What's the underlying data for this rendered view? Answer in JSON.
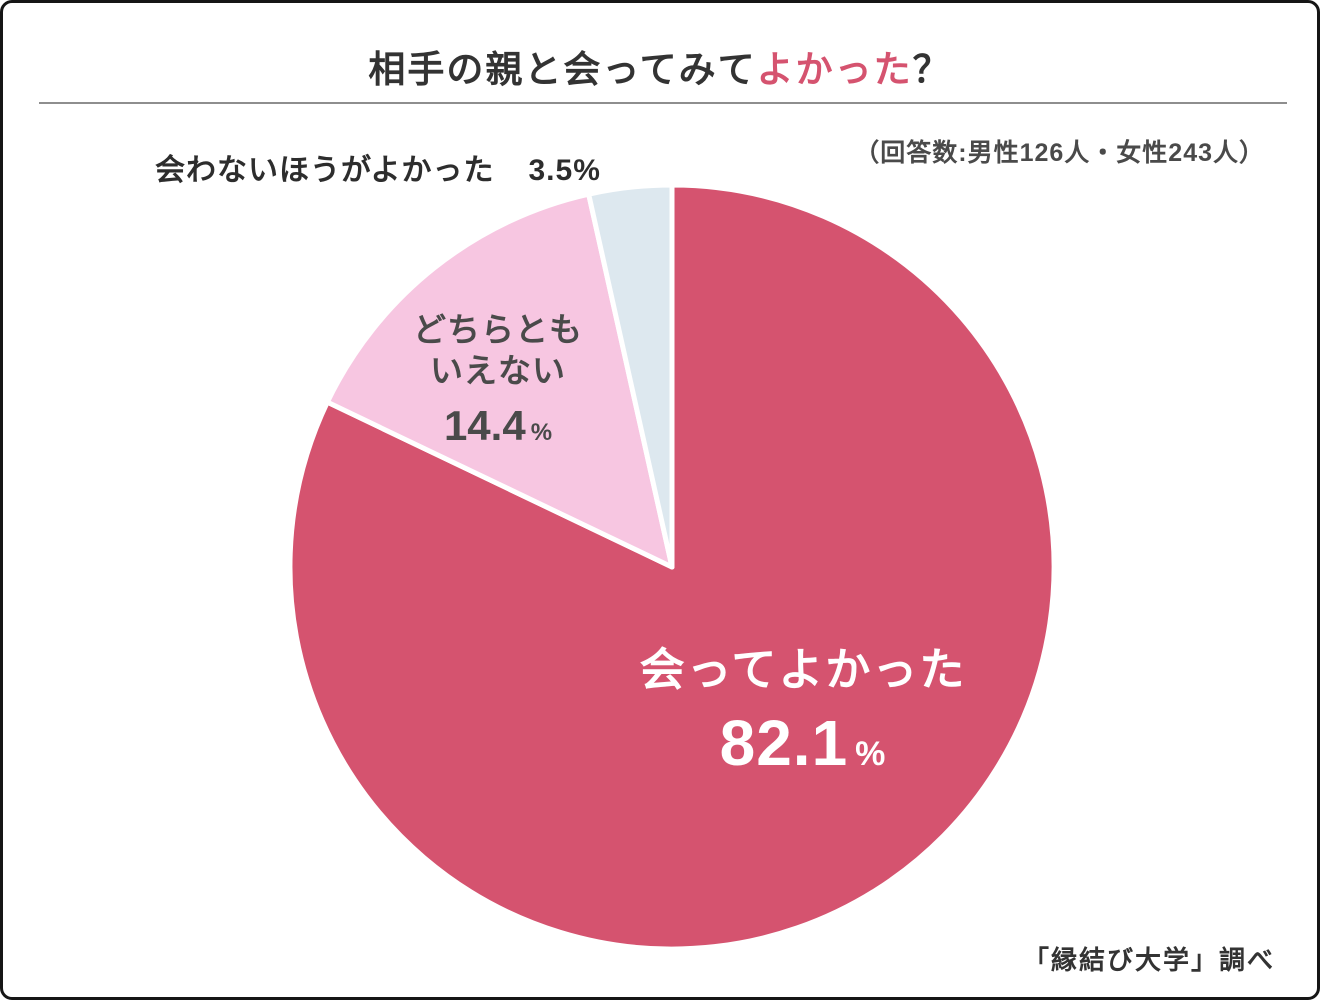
{
  "title": {
    "prefix": "相手の親と会ってみて",
    "highlight": "よかった",
    "suffix": "？"
  },
  "note": "（回答数:男性126人・女性243人）",
  "source": "「縁結び大学」調べ",
  "chart_data": {
    "type": "pie",
    "title": "相手の親と会ってみてよかった？",
    "units": "%",
    "direction": "clockwise",
    "start_angle": "12-oclock",
    "legend_position": "labels-on-chart",
    "slices": [
      {
        "label": "会ってよかった",
        "value": 82.1,
        "color": "#d5536f"
      },
      {
        "label": "どちらともいえない",
        "value": 14.4,
        "color": "#f7c6e1"
      },
      {
        "label": "会わないほうがよかった",
        "value": 3.5,
        "color": "#dde8ef"
      }
    ]
  },
  "labels": {
    "negative_text": "会わないほうがよかった",
    "negative_pct": "3.5%",
    "neutral_line1": "どちらとも",
    "neutral_line2": "いえない",
    "neutral_value": "14.4",
    "neutral_unit": "%",
    "main_text": "会ってよかった",
    "main_value": "82.1",
    "main_unit": "%"
  }
}
